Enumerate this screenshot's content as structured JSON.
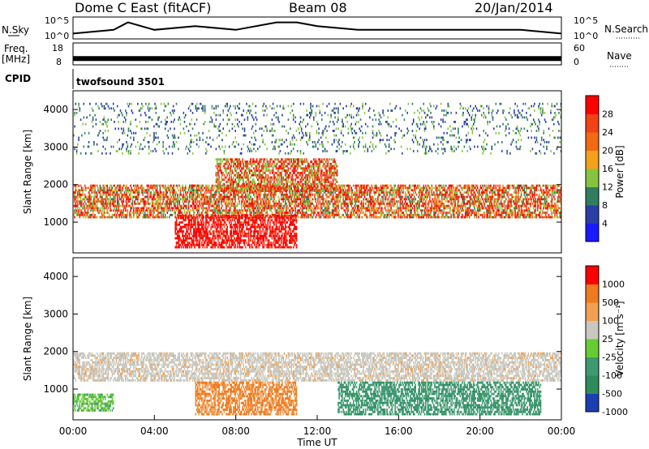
{
  "header": {
    "title": "Dome C East (fitACF)",
    "beam": "Beam 08",
    "date": "20/Jan/2014"
  },
  "colors": {
    "power_scale": [
      "#1a1aff",
      "#2a3ea6",
      "#2f7f5f",
      "#86c440",
      "#f2a11a",
      "#f26a14",
      "#f24216",
      "#ff0000"
    ],
    "velocity_scale": [
      "#1b3fb0",
      "#2f8c5c",
      "#3f9a70",
      "#66cc33",
      "#c8c8c0",
      "#f0a050",
      "#f07a20",
      "#ff0000"
    ]
  },
  "chart_data": [
    {
      "type": "line",
      "name": "nsky-nsearch-strip",
      "labels": {
        "left": "N.Sky",
        "right": "N.Search"
      },
      "ticks_left": [
        "10^5",
        "10^0"
      ],
      "ticks_right": [
        "10^5",
        "10^0"
      ],
      "x": [
        0,
        2,
        2.7,
        4,
        6,
        8,
        10,
        11,
        12,
        14,
        16,
        18,
        20,
        22,
        24
      ],
      "values": [
        1,
        2,
        4,
        2,
        3,
        2,
        4,
        4,
        3,
        2,
        2,
        2,
        2,
        2,
        1
      ],
      "ylim": [
        0,
        5
      ]
    },
    {
      "type": "line",
      "name": "freq-nave-strip",
      "labels": {
        "left": "Freq.",
        "left_unit": "[MHz]",
        "right": "Nave"
      },
      "ticks_left": [
        "18",
        "8"
      ],
      "ticks_right": [
        "60",
        "0"
      ],
      "x": [
        0,
        24
      ],
      "values": [
        10.5,
        10.5
      ],
      "ylim": [
        8,
        18
      ]
    },
    {
      "type": "heatmap",
      "name": "power",
      "cpid_label": "CPID",
      "cpid_text": "twofsound 3501",
      "ylabel": "Slant Range [km]",
      "y_ticks": [
        "1000",
        "2000",
        "3000",
        "4000"
      ],
      "ylim": [
        180,
        4500
      ],
      "xlim": [
        0,
        24
      ],
      "colorbar_label": "Power [dB]",
      "colorbar_ticks": [
        "4",
        "8",
        "12",
        "16",
        "20",
        "24",
        "28"
      ],
      "colorbar_range": [
        0,
        32
      ],
      "bands": [
        {
          "x": [
            0,
            24
          ],
          "range": [
            1100,
            2000
          ],
          "dominant": "red-orange-green"
        },
        {
          "x": [
            5,
            11
          ],
          "range": [
            300,
            1200
          ],
          "dominant": "red"
        },
        {
          "x": [
            7,
            13
          ],
          "range": [
            1800,
            2700
          ],
          "dominant": "orange-green"
        },
        {
          "x": [
            0,
            24
          ],
          "range": [
            2800,
            4200
          ],
          "dominant": "sparse green-blue"
        }
      ]
    },
    {
      "type": "heatmap",
      "name": "velocity",
      "ylabel": "Slant Range [km]",
      "xlabel": "Time UT",
      "y_ticks": [
        "1000",
        "2000",
        "3000",
        "4000"
      ],
      "x_ticks": [
        "00:00",
        "04:00",
        "08:00",
        "12:00",
        "16:00",
        "20:00",
        "00:00"
      ],
      "ylim": [
        180,
        4500
      ],
      "xlim": [
        0,
        24
      ],
      "colorbar_label": "Velocity [m s⁻¹]",
      "colorbar_ticks": [
        "1000",
        "500",
        "100",
        "25",
        "-25",
        "-100",
        "-500",
        "-1000"
      ],
      "bands": [
        {
          "x": [
            0,
            24
          ],
          "range": [
            1200,
            2000
          ],
          "dominant": "grey"
        },
        {
          "x": [
            6,
            11
          ],
          "range": [
            300,
            1200
          ],
          "dominant": "orange"
        },
        {
          "x": [
            13,
            23
          ],
          "range": [
            300,
            1200
          ],
          "dominant": "green"
        },
        {
          "x": [
            0,
            2
          ],
          "range": [
            400,
            900
          ],
          "dominant": "light green"
        }
      ]
    }
  ]
}
